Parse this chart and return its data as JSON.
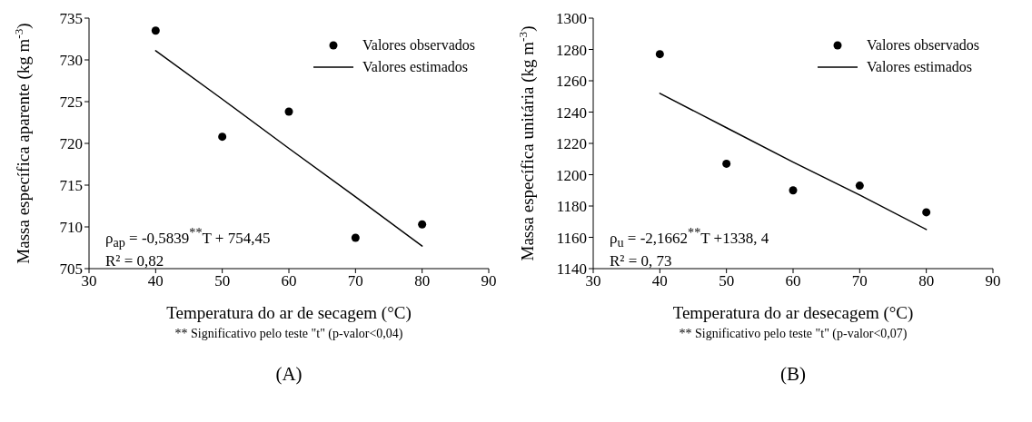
{
  "chart_data": [
    {
      "type": "scatter",
      "x": [
        40,
        50,
        60,
        70,
        80
      ],
      "series": [
        {
          "name": "Valores observados",
          "type": "scatter",
          "color": "#000000",
          "marker": "circle",
          "values": [
            733.5,
            720.8,
            723.8,
            708.7,
            710.3
          ]
        },
        {
          "name": "Valores estimados",
          "type": "line",
          "color": "#000000",
          "marker": "none",
          "line_style": "solid",
          "values": [
            731.1,
            725.3,
            719.4,
            713.6,
            707.7
          ]
        }
      ],
      "xlim": [
        30,
        90
      ],
      "xticks": [
        30,
        40,
        50,
        60,
        70,
        80,
        90
      ],
      "ylim": [
        705,
        735
      ],
      "yticks": [
        705,
        710,
        715,
        720,
        725,
        730,
        735
      ],
      "legend": "top right",
      "xlabel": "Temperatura do ar de secagem (°C)",
      "ylabel": "Massa específica aparente (kg m$^{-3}$)",
      "annotations": [
        "ρ$_{ap}$ = -0,5839$^{**}$T + 754,45",
        "R² = 0,82",
        "** Significativo pelo teste \"t\" (p-valor<0,04)",
        "(A)"
      ]
    },
    {
      "type": "scatter",
      "x": [
        40,
        50,
        60,
        70,
        80
      ],
      "series": [
        {
          "name": "Valores observados",
          "type": "scatter",
          "color": "#000000",
          "marker": "circle",
          "values": [
            1277,
            1207,
            1190,
            1193,
            1176
          ]
        },
        {
          "name": "Valores estimados",
          "type": "line",
          "color": "#000000",
          "marker": "none",
          "line_style": "solid",
          "values": [
            1252,
            1230,
            1208,
            1187,
            1165
          ]
        }
      ],
      "xlim": [
        30,
        90
      ],
      "xticks": [
        30,
        40,
        50,
        60,
        70,
        80,
        90
      ],
      "ylim": [
        1140,
        1300
      ],
      "yticks": [
        1140,
        1160,
        1180,
        1200,
        1220,
        1240,
        1260,
        1280,
        1300
      ],
      "legend": "top right",
      "xlabel": "Temperatura do ar desecagem (°C)",
      "ylabel": "Massa específica unitária (kg m$^{-3}$)",
      "annotations": [
        "ρ$_{u}$ =  -2,1662$^{**}$T +1338, 4",
        "R² =  0, 73",
        "** Significativo pelo teste \"t\" (p-valor<0,07)",
        "(B)"
      ]
    }
  ]
}
